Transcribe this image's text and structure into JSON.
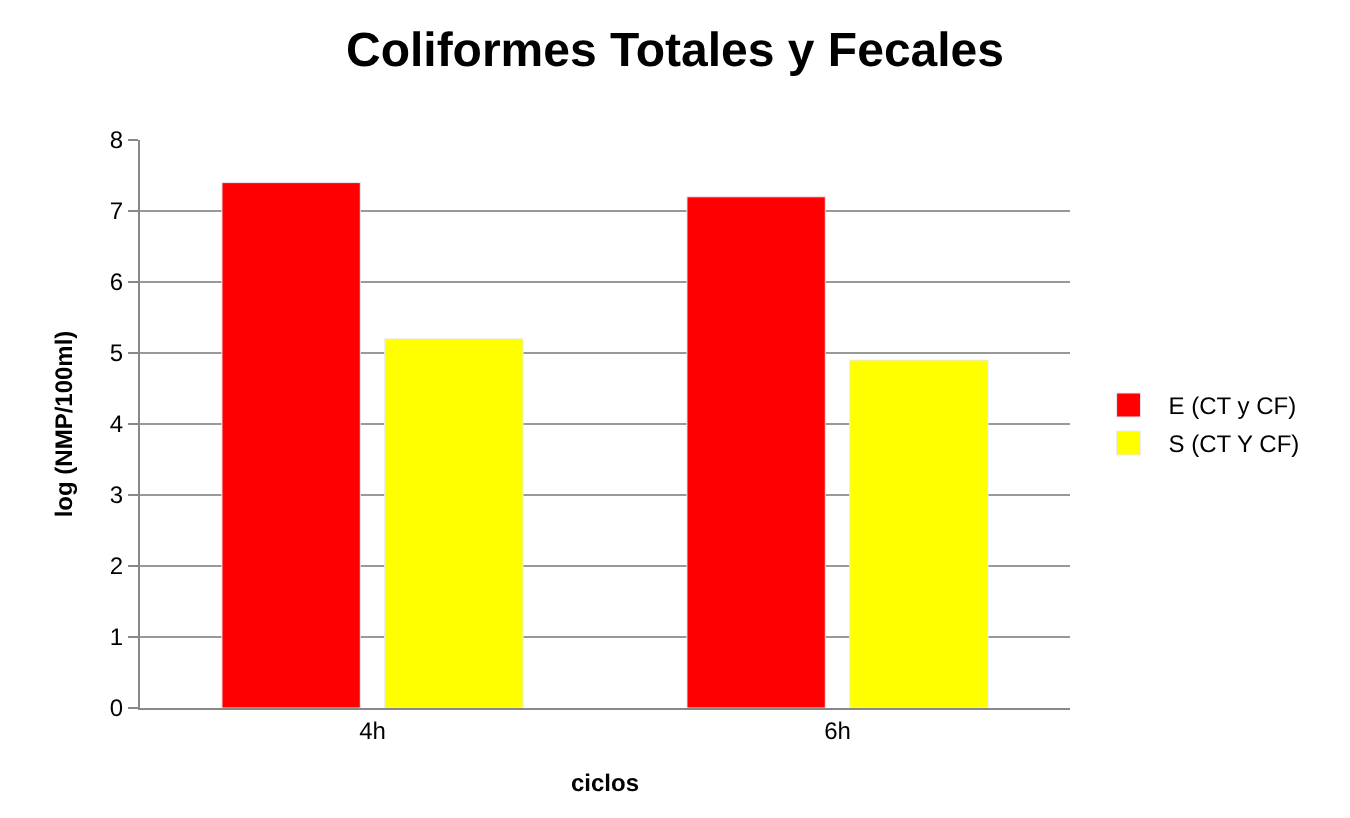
{
  "chart_data": {
    "type": "bar",
    "title": "Coliformes Totales y Fecales",
    "xlabel": "ciclos",
    "ylabel": "log (NMP/100ml)",
    "categories": [
      "4h",
      "6h"
    ],
    "series": [
      {
        "name": "E (CT y CF)",
        "color": "#ff0000",
        "values": [
          7.4,
          7.2
        ]
      },
      {
        "name": "S (CT Y CF)",
        "color": "#ffff00",
        "values": [
          5.2,
          4.9
        ]
      }
    ],
    "ylim": [
      0,
      8
    ],
    "yticks": [
      0,
      1,
      2,
      3,
      4,
      5,
      6,
      7,
      8
    ],
    "grid": "y",
    "legend": "right"
  }
}
